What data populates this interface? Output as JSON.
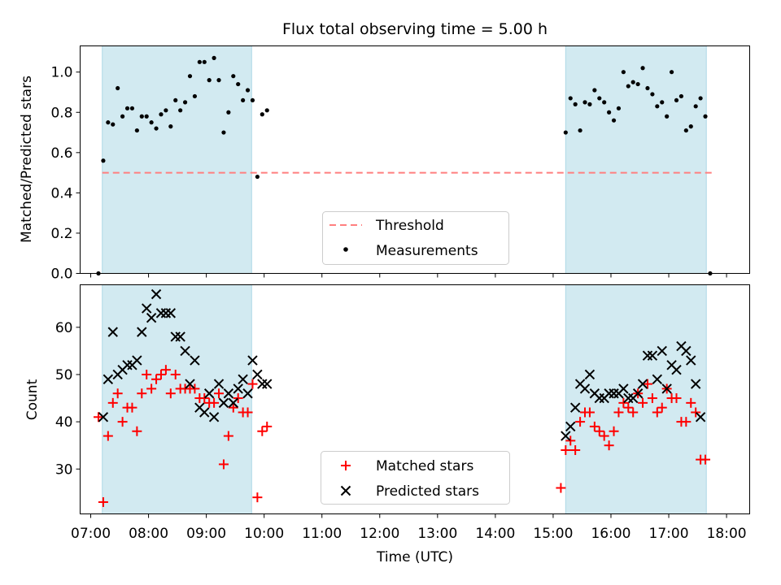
{
  "title": "Flux total observing time = 5.00 h",
  "colors": {
    "threshold": "#ff7f7f",
    "measurements": "#000000",
    "matched": "#ff0000",
    "predicted": "#000000",
    "span": "#add8e6"
  },
  "chart_data": [
    {
      "type": "scatter",
      "ylabel": "Matched/Predicted stars",
      "ylim": [
        0,
        1.13
      ],
      "xlim": [
        "06:49",
        "18:24"
      ],
      "yticks": [
        "0.0",
        "0.2",
        "0.4",
        "0.6",
        "0.8",
        "1.0"
      ],
      "shaded_spans": [
        [
          "07:12",
          "09:47"
        ],
        [
          "15:13",
          "17:39"
        ]
      ],
      "threshold": {
        "name": "Threshold",
        "value": 0.5,
        "x": [
          "07:12",
          "17:45"
        ]
      },
      "legend": {
        "position": "lower center"
      },
      "series": [
        {
          "name": "Measurements",
          "points": [
            [
              "07:08",
              0.0
            ],
            [
              "07:13",
              0.56
            ],
            [
              "07:18",
              0.75
            ],
            [
              "07:23",
              0.74
            ],
            [
              "07:28",
              0.92
            ],
            [
              "07:33",
              0.78
            ],
            [
              "07:38",
              0.82
            ],
            [
              "07:43",
              0.82
            ],
            [
              "07:48",
              0.71
            ],
            [
              "07:53",
              0.78
            ],
            [
              "07:58",
              0.78
            ],
            [
              "08:03",
              0.75
            ],
            [
              "08:08",
              0.72
            ],
            [
              "08:13",
              0.79
            ],
            [
              "08:18",
              0.81
            ],
            [
              "08:23",
              0.73
            ],
            [
              "08:28",
              0.86
            ],
            [
              "08:33",
              0.81
            ],
            [
              "08:38",
              0.85
            ],
            [
              "08:43",
              0.98
            ],
            [
              "08:48",
              0.88
            ],
            [
              "08:53",
              1.05
            ],
            [
              "08:58",
              1.05
            ],
            [
              "09:03",
              0.96
            ],
            [
              "09:08",
              1.07
            ],
            [
              "09:13",
              0.96
            ],
            [
              "09:18",
              0.7
            ],
            [
              "09:23",
              0.8
            ],
            [
              "09:28",
              0.98
            ],
            [
              "09:33",
              0.94
            ],
            [
              "09:38",
              0.86
            ],
            [
              "09:43",
              0.91
            ],
            [
              "09:48",
              0.86
            ],
            [
              "09:53",
              0.48
            ],
            [
              "09:58",
              0.79
            ],
            [
              "10:03",
              0.81
            ],
            [
              "15:13",
              0.7
            ],
            [
              "15:18",
              0.87
            ],
            [
              "15:23",
              0.84
            ],
            [
              "15:28",
              0.71
            ],
            [
              "15:33",
              0.85
            ],
            [
              "15:38",
              0.84
            ],
            [
              "15:43",
              0.91
            ],
            [
              "15:48",
              0.87
            ],
            [
              "15:53",
              0.85
            ],
            [
              "15:58",
              0.8
            ],
            [
              "16:03",
              0.76
            ],
            [
              "16:08",
              0.82
            ],
            [
              "16:13",
              1.0
            ],
            [
              "16:18",
              0.93
            ],
            [
              "16:23",
              0.95
            ],
            [
              "16:28",
              0.94
            ],
            [
              "16:33",
              1.02
            ],
            [
              "16:38",
              0.92
            ],
            [
              "16:43",
              0.89
            ],
            [
              "16:48",
              0.83
            ],
            [
              "16:53",
              0.85
            ],
            [
              "16:58",
              0.78
            ],
            [
              "17:03",
              1.0
            ],
            [
              "17:08",
              0.86
            ],
            [
              "17:13",
              0.88
            ],
            [
              "17:18",
              0.71
            ],
            [
              "17:23",
              0.73
            ],
            [
              "17:28",
              0.83
            ],
            [
              "17:33",
              0.87
            ],
            [
              "17:38",
              0.78
            ],
            [
              "17:43",
              0.0
            ]
          ]
        }
      ]
    },
    {
      "type": "scatter",
      "ylabel": "Count",
      "xlabel": "Time (UTC)",
      "ylim": [
        20.5,
        69.0
      ],
      "yticks": [
        "30",
        "40",
        "50",
        "60"
      ],
      "xticks": [
        "07:00",
        "08:00",
        "09:00",
        "10:00",
        "11:00",
        "12:00",
        "13:00",
        "14:00",
        "15:00",
        "16:00",
        "17:00",
        "18:00"
      ],
      "shaded_spans": [
        [
          "07:12",
          "09:47"
        ],
        [
          "15:13",
          "17:39"
        ]
      ],
      "legend": {
        "position": "lower center"
      },
      "series": [
        {
          "name": "Matched stars",
          "marker": "plus",
          "points": [
            [
              "07:08",
              41
            ],
            [
              "07:13",
              23
            ],
            [
              "07:18",
              37
            ],
            [
              "07:23",
              44
            ],
            [
              "07:28",
              46
            ],
            [
              "07:33",
              40
            ],
            [
              "07:38",
              43
            ],
            [
              "07:43",
              43
            ],
            [
              "07:48",
              38
            ],
            [
              "07:53",
              46
            ],
            [
              "07:58",
              50
            ],
            [
              "08:03",
              47
            ],
            [
              "08:08",
              49
            ],
            [
              "08:13",
              50
            ],
            [
              "08:18",
              51
            ],
            [
              "08:23",
              46
            ],
            [
              "08:28",
              50
            ],
            [
              "08:33",
              47
            ],
            [
              "08:38",
              47
            ],
            [
              "08:43",
              47
            ],
            [
              "08:48",
              47
            ],
            [
              "08:53",
              45
            ],
            [
              "08:58",
              45
            ],
            [
              "09:03",
              44
            ],
            [
              "09:08",
              44
            ],
            [
              "09:13",
              46
            ],
            [
              "09:18",
              31
            ],
            [
              "09:23",
              37
            ],
            [
              "09:28",
              43
            ],
            [
              "09:33",
              45
            ],
            [
              "09:38",
              42
            ],
            [
              "09:43",
              42
            ],
            [
              "09:48",
              48
            ],
            [
              "09:53",
              24
            ],
            [
              "09:58",
              38
            ],
            [
              "10:03",
              39
            ],
            [
              "15:08",
              26
            ],
            [
              "15:13",
              34
            ],
            [
              "15:18",
              36
            ],
            [
              "15:23",
              34
            ],
            [
              "15:28",
              40
            ],
            [
              "15:33",
              42
            ],
            [
              "15:38",
              42
            ],
            [
              "15:43",
              39
            ],
            [
              "15:48",
              38
            ],
            [
              "15:53",
              37
            ],
            [
              "15:58",
              35
            ],
            [
              "16:03",
              38
            ],
            [
              "16:08",
              42
            ],
            [
              "16:13",
              44
            ],
            [
              "16:18",
              43
            ],
            [
              "16:23",
              42
            ],
            [
              "16:28",
              46
            ],
            [
              "16:33",
              44
            ],
            [
              "16:38",
              48
            ],
            [
              "16:43",
              45
            ],
            [
              "16:48",
              42
            ],
            [
              "16:53",
              43
            ],
            [
              "16:58",
              47
            ],
            [
              "17:03",
              45
            ],
            [
              "17:08",
              45
            ],
            [
              "17:13",
              40
            ],
            [
              "17:18",
              40
            ],
            [
              "17:23",
              44
            ],
            [
              "17:28",
              42
            ],
            [
              "17:33",
              32
            ],
            [
              "17:38",
              32
            ]
          ]
        },
        {
          "name": "Predicted stars",
          "marker": "x",
          "points": [
            [
              "07:13",
              41
            ],
            [
              "07:18",
              49
            ],
            [
              "07:23",
              59
            ],
            [
              "07:28",
              50
            ],
            [
              "07:33",
              51
            ],
            [
              "07:38",
              52
            ],
            [
              "07:43",
              52
            ],
            [
              "07:48",
              53
            ],
            [
              "07:53",
              59
            ],
            [
              "07:58",
              64
            ],
            [
              "08:03",
              62
            ],
            [
              "08:08",
              67
            ],
            [
              "08:13",
              63
            ],
            [
              "08:18",
              63
            ],
            [
              "08:23",
              63
            ],
            [
              "08:28",
              58
            ],
            [
              "08:33",
              58
            ],
            [
              "08:38",
              55
            ],
            [
              "08:43",
              48
            ],
            [
              "08:48",
              53
            ],
            [
              "08:53",
              43
            ],
            [
              "08:58",
              42
            ],
            [
              "09:03",
              46
            ],
            [
              "09:08",
              41
            ],
            [
              "09:13",
              48
            ],
            [
              "09:18",
              44
            ],
            [
              "09:23",
              46
            ],
            [
              "09:28",
              44
            ],
            [
              "09:33",
              47
            ],
            [
              "09:38",
              49
            ],
            [
              "09:43",
              46
            ],
            [
              "09:48",
              53
            ],
            [
              "09:53",
              50
            ],
            [
              "09:58",
              48
            ],
            [
              "10:03",
              48
            ],
            [
              "15:13",
              37
            ],
            [
              "15:18",
              39
            ],
            [
              "15:23",
              43
            ],
            [
              "15:28",
              48
            ],
            [
              "15:33",
              47
            ],
            [
              "15:38",
              50
            ],
            [
              "15:43",
              46
            ],
            [
              "15:48",
              45
            ],
            [
              "15:53",
              45
            ],
            [
              "15:58",
              46
            ],
            [
              "16:03",
              46
            ],
            [
              "16:08",
              46
            ],
            [
              "16:13",
              47
            ],
            [
              "16:18",
              45
            ],
            [
              "16:23",
              45
            ],
            [
              "16:28",
              46
            ],
            [
              "16:33",
              48
            ],
            [
              "16:38",
              54
            ],
            [
              "16:43",
              54
            ],
            [
              "16:48",
              49
            ],
            [
              "16:53",
              55
            ],
            [
              "16:58",
              47
            ],
            [
              "17:03",
              52
            ],
            [
              "17:08",
              51
            ],
            [
              "17:13",
              56
            ],
            [
              "17:18",
              55
            ],
            [
              "17:23",
              53
            ],
            [
              "17:28",
              48
            ],
            [
              "17:33",
              41
            ]
          ]
        }
      ]
    }
  ]
}
